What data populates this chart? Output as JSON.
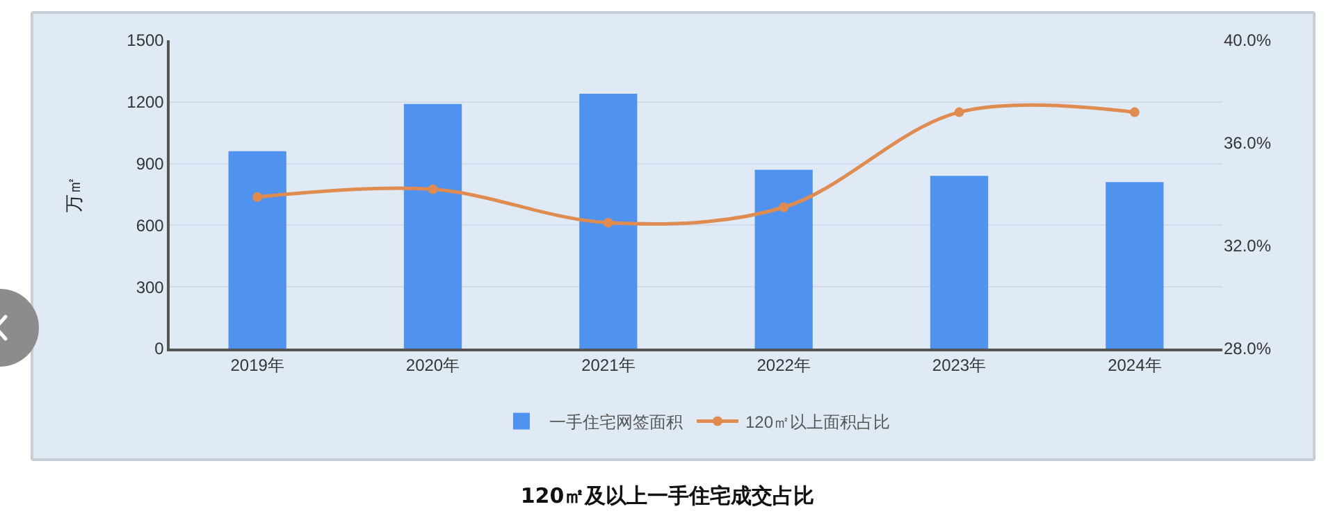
{
  "chart_data": {
    "type": "bar",
    "title": "120㎡及以上一手住宅成交占比",
    "ylabel": "万㎡",
    "categories": [
      "2019年",
      "2020年",
      "2021年",
      "2022年",
      "2023年",
      "2024年"
    ],
    "series": [
      {
        "name": "一手住宅网签面积",
        "color": "#4f93ef",
        "values": [
          960,
          1190,
          1240,
          870,
          840,
          810
        ]
      },
      {
        "name": "120㎡以上面积占比",
        "type": "line",
        "axis": "y2",
        "color": "#e08b4f",
        "marker": "circle",
        "values": [
          33.9,
          34.2,
          32.9,
          33.5,
          37.2,
          37.2
        ]
      }
    ],
    "ylim": [
      0,
      1500
    ],
    "yticks": [
      0,
      300,
      600,
      900,
      1200,
      1500
    ],
    "y2lim": [
      28,
      40
    ],
    "y2ticks": [
      {
        "value": 28,
        "label": "28.0%"
      },
      {
        "value": 32,
        "label": "32.0%"
      },
      {
        "value": 36,
        "label": "36.0%"
      },
      {
        "value": 40,
        "label": "40.0%"
      }
    ],
    "grid": "y",
    "legend": "bottom"
  }
}
